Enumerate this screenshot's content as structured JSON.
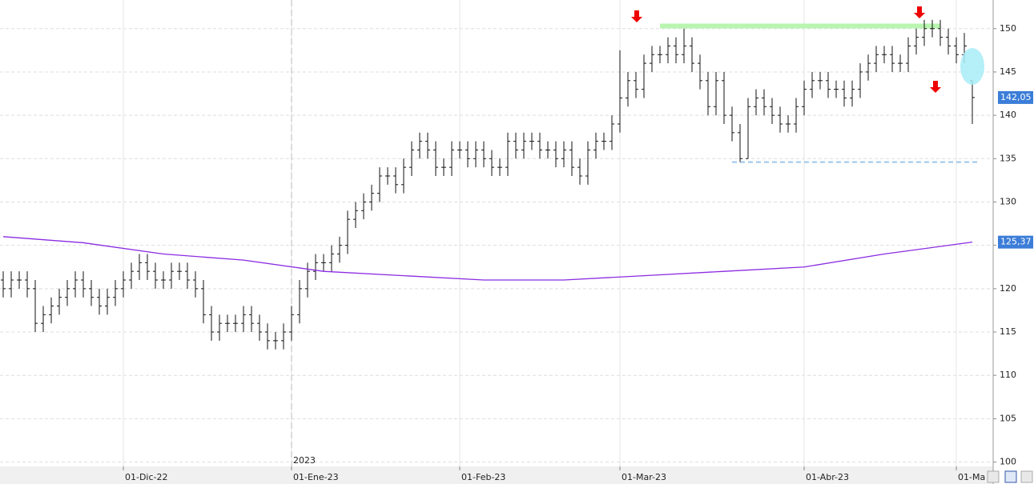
{
  "chart_data": {
    "type": "ohlc",
    "categories": [
      null,
      null,
      null,
      null,
      null,
      null,
      null,
      null,
      null,
      null,
      null,
      null,
      null,
      null,
      null,
      "01-Dic-22",
      null,
      null,
      null,
      null,
      null,
      null,
      null,
      null,
      null,
      null,
      null,
      null,
      null,
      null,
      null,
      null,
      null,
      null,
      null,
      null,
      "01-Ene-23",
      null,
      null,
      null,
      null,
      null,
      null,
      null,
      null,
      null,
      null,
      null,
      null,
      null,
      null,
      null,
      null,
      null,
      null,
      null,
      null,
      "01-Feb-23",
      null,
      null,
      null,
      null,
      null,
      null,
      null,
      null,
      null,
      null,
      null,
      null,
      null,
      null,
      null,
      null,
      null,
      null,
      null,
      "01-Mar-23",
      null,
      null,
      null,
      null,
      null,
      null,
      null,
      null,
      null,
      null,
      null,
      null,
      null,
      null,
      null,
      null,
      null,
      null,
      null,
      null,
      null,
      null,
      "01-Abr-23",
      null,
      null,
      null,
      null,
      null,
      null,
      null,
      null,
      null,
      null,
      null,
      null,
      null,
      null,
      null,
      null,
      null,
      null,
      "01-Ma",
      null,
      null
    ],
    "open": [
      121,
      120,
      121,
      121,
      120,
      116,
      117,
      118,
      119,
      120,
      121,
      120,
      119,
      118,
      119,
      120,
      121,
      122,
      123,
      122,
      121,
      121,
      122,
      122,
      121,
      120,
      117,
      115,
      116,
      116,
      116,
      117,
      116,
      115,
      114,
      114,
      115,
      117,
      120,
      122,
      123,
      123,
      124,
      125,
      128,
      129,
      130,
      131,
      133,
      133,
      132,
      134,
      136,
      137,
      136,
      134,
      134,
      136,
      136,
      135,
      136,
      135,
      134,
      134,
      137,
      136,
      137,
      137,
      136,
      136,
      135,
      136,
      134,
      133,
      136,
      137,
      137,
      139,
      142,
      144,
      143,
      146,
      147,
      147,
      148,
      147,
      148,
      146,
      144,
      141,
      144,
      140,
      138,
      135,
      141,
      142,
      141,
      140,
      139,
      139,
      141,
      143,
      144,
      144,
      143,
      143,
      142,
      143,
      145,
      146,
      147,
      147,
      146,
      146,
      148,
      149,
      150,
      150,
      149,
      148,
      147,
      144
    ],
    "high": [
      122,
      122,
      122,
      122,
      121,
      118,
      119,
      120,
      121,
      122,
      122,
      121,
      120,
      120,
      121,
      122,
      123,
      124,
      124,
      123,
      122,
      123,
      123,
      123,
      122,
      121,
      118,
      117,
      117,
      117,
      118,
      118,
      117,
      116,
      115,
      116,
      118,
      121,
      123,
      124,
      124,
      125,
      126,
      129,
      130,
      131,
      132,
      134,
      134,
      134,
      135,
      137,
      138,
      138,
      137,
      135,
      137,
      137,
      137,
      137,
      137,
      136,
      135,
      138,
      138,
      138,
      138,
      138,
      137,
      137,
      137,
      137,
      135,
      137,
      138,
      138,
      140,
      147.5,
      145,
      145,
      147,
      148,
      148,
      149,
      149,
      150,
      149,
      147,
      145,
      145,
      145,
      141,
      139,
      142,
      143,
      143,
      142,
      141,
      140,
      142,
      144,
      145,
      145,
      145,
      144,
      144,
      144,
      146,
      147,
      148,
      148,
      148,
      147,
      149,
      150,
      151,
      151,
      151,
      150,
      149,
      149.5,
      144
    ],
    "low": [
      119,
      119,
      120,
      119,
      115,
      115,
      116,
      117,
      118,
      119,
      119,
      118,
      117,
      117,
      118,
      119,
      120,
      121,
      121,
      120,
      120,
      120,
      121,
      120,
      119,
      116,
      114,
      114,
      115,
      115,
      115,
      115,
      114,
      113,
      113,
      113,
      114,
      116,
      119,
      121,
      122,
      122,
      123,
      124,
      127,
      128,
      129,
      130,
      132,
      131,
      131,
      133,
      135,
      135,
      133,
      133,
      133,
      135,
      134,
      134,
      134,
      133,
      133,
      133,
      135,
      135,
      136,
      135,
      135,
      134,
      134,
      133,
      132,
      132,
      135,
      136,
      136,
      138,
      141,
      142,
      142,
      145,
      146,
      146,
      146,
      146,
      145,
      143,
      140,
      140,
      139,
      137,
      134.6,
      135,
      140,
      140,
      139,
      138,
      138,
      138,
      140,
      142,
      143,
      142,
      142,
      141,
      141,
      142,
      144,
      145,
      146,
      145,
      145,
      145,
      147,
      148,
      149,
      148,
      147,
      146,
      146,
      139
    ],
    "close": [
      120,
      121,
      121,
      120,
      116,
      117,
      118,
      119,
      120,
      121,
      120,
      119,
      118,
      119,
      120,
      121,
      122,
      123,
      122,
      121,
      121,
      122,
      122,
      121,
      120,
      117,
      115,
      116,
      116,
      116,
      117,
      116,
      115,
      114,
      114,
      115,
      117,
      120,
      122,
      123,
      123,
      124,
      125,
      128,
      129,
      130,
      131,
      133,
      133,
      132,
      134,
      136,
      137,
      136,
      134,
      134,
      136,
      136,
      135,
      136,
      135,
      134,
      134,
      137,
      136,
      137,
      137,
      136,
      136,
      135,
      136,
      134,
      133,
      136,
      137,
      137,
      139,
      142,
      144,
      143,
      146,
      147,
      147,
      148,
      147,
      148,
      146,
      144,
      141,
      144,
      140,
      138,
      135,
      141,
      142,
      141,
      140,
      139,
      139,
      141,
      143,
      144,
      144,
      143,
      143,
      142,
      143,
      145,
      146,
      147,
      147,
      146,
      146,
      148,
      149,
      150,
      150,
      149,
      148,
      147,
      148,
      142.05
    ],
    "bar_color": "#111111",
    "overlay": {
      "color": "#8a2be2",
      "x": [
        0,
        10,
        20,
        30,
        40,
        50,
        60,
        70,
        80,
        90,
        100,
        110,
        121
      ],
      "values": [
        126,
        125.3,
        124,
        123.3,
        122,
        121.5,
        121,
        121,
        121.5,
        122,
        122.5,
        124,
        125.37
      ]
    },
    "levels": [
      {
        "value": 150.3,
        "from": 82,
        "to": 117,
        "color": "#b9f5b0",
        "dashed": false
      },
      {
        "value": 134.6,
        "from": 91,
        "to": 122,
        "color": "#9cc4ec",
        "dashed": true
      }
    ],
    "price_labels": [
      {
        "value": 142.05,
        "label": "142,05"
      },
      {
        "value": 125.37,
        "label": "125,37"
      }
    ],
    "year_label": "2023",
    "ylim": [
      99.5,
      153.3
    ],
    "yticks": [
      100,
      105,
      110,
      115,
      120,
      125,
      130,
      135,
      140,
      145,
      150
    ],
    "grid": true
  }
}
